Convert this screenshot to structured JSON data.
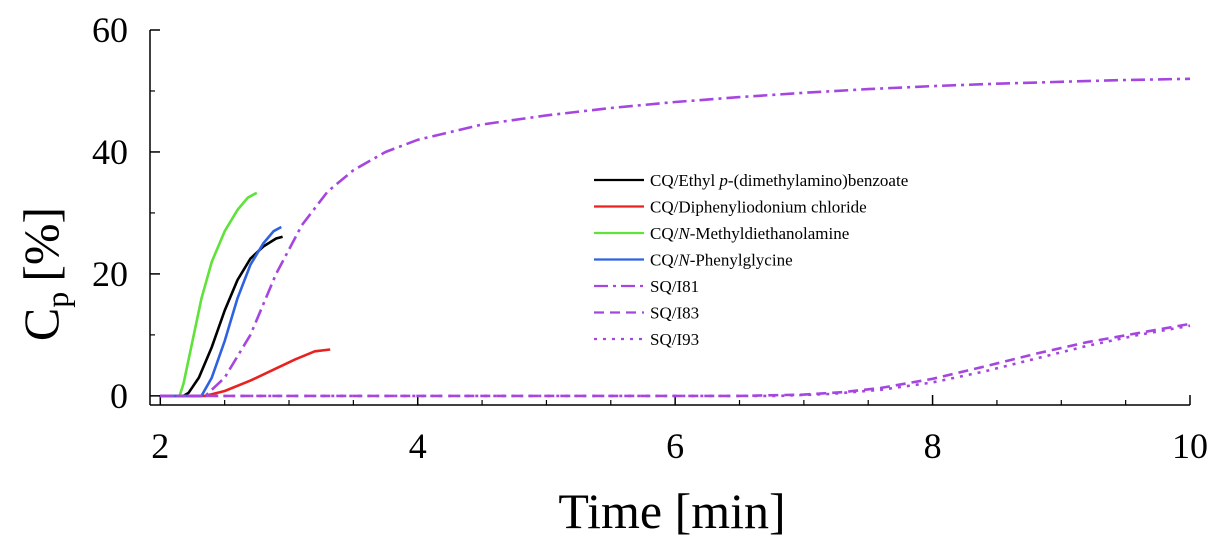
{
  "chart_data": {
    "type": "line",
    "xlabel": "Time [min]",
    "ylabel_main": "C",
    "ylabel_sub": "p",
    "ylabel_unit": "[%]",
    "xlim": [
      1.92,
      10.0
    ],
    "ylim": [
      -1.5,
      60
    ],
    "x_ticks": [
      2,
      4,
      6,
      8,
      10
    ],
    "x_tick_labels": [
      "2",
      "4",
      "6",
      "8",
      "10"
    ],
    "y_ticks": [
      0,
      20,
      40,
      60
    ],
    "y_tick_labels": [
      "0",
      "20",
      "40",
      "60"
    ],
    "x_minor_step": 0.5,
    "y_minor_step": 10,
    "grid": false,
    "legend_position": "center-right",
    "series": [
      {
        "name": "CQ/Ethyl p-(dimethylamino)benzoate",
        "name_parts": [
          {
            "text": "CQ/Ethyl ",
            "italic": false
          },
          {
            "text": "p",
            "italic": true
          },
          {
            "text": "-(dimethylamino)benzoate",
            "italic": false
          }
        ],
        "color": "#000000",
        "dash": "solid",
        "points": [
          [
            2.0,
            0
          ],
          [
            2.18,
            0
          ],
          [
            2.22,
            0.5
          ],
          [
            2.3,
            3
          ],
          [
            2.4,
            8
          ],
          [
            2.5,
            14
          ],
          [
            2.6,
            19
          ],
          [
            2.7,
            22.5
          ],
          [
            2.8,
            24.5
          ],
          [
            2.9,
            25.8
          ],
          [
            2.95,
            26.1
          ]
        ]
      },
      {
        "name": "CQ/Diphenyliodonium chloride",
        "name_parts": [
          {
            "text": "CQ/Diphenyliodonium chloride",
            "italic": false
          }
        ],
        "color": "#e8231f",
        "dash": "solid",
        "points": [
          [
            2.0,
            0
          ],
          [
            2.35,
            0
          ],
          [
            2.5,
            0.8
          ],
          [
            2.7,
            2.5
          ],
          [
            2.9,
            4.5
          ],
          [
            3.05,
            6.0
          ],
          [
            3.2,
            7.3
          ],
          [
            3.32,
            7.6
          ]
        ]
      },
      {
        "name": "CQ/N-Methyldiethanolamine",
        "name_parts": [
          {
            "text": "CQ/",
            "italic": false
          },
          {
            "text": "N",
            "italic": true
          },
          {
            "text": "-Methyldiethanolamine",
            "italic": false
          }
        ],
        "color": "#5fe23a",
        "dash": "solid",
        "points": [
          [
            2.0,
            0
          ],
          [
            2.15,
            0
          ],
          [
            2.18,
            2
          ],
          [
            2.25,
            9
          ],
          [
            2.32,
            16
          ],
          [
            2.4,
            22
          ],
          [
            2.5,
            27
          ],
          [
            2.6,
            30.5
          ],
          [
            2.68,
            32.5
          ],
          [
            2.75,
            33.3
          ]
        ]
      },
      {
        "name": "CQ/N-Phenylglycine",
        "name_parts": [
          {
            "text": "CQ/",
            "italic": false
          },
          {
            "text": "N",
            "italic": true
          },
          {
            "text": "-Phenylglycine",
            "italic": false
          }
        ],
        "color": "#2f62e0",
        "dash": "solid",
        "points": [
          [
            2.0,
            0
          ],
          [
            2.32,
            0
          ],
          [
            2.4,
            3
          ],
          [
            2.5,
            9
          ],
          [
            2.6,
            16
          ],
          [
            2.7,
            21.5
          ],
          [
            2.8,
            25
          ],
          [
            2.88,
            27
          ],
          [
            2.94,
            27.7
          ]
        ]
      },
      {
        "name": "SQ/I81",
        "name_parts": [
          {
            "text": "SQ/I81",
            "italic": false
          }
        ],
        "color": "#a646e0",
        "dash": "dashdot",
        "points": [
          [
            2.0,
            0
          ],
          [
            2.35,
            0
          ],
          [
            2.5,
            3
          ],
          [
            2.7,
            10
          ],
          [
            2.9,
            20
          ],
          [
            3.1,
            28
          ],
          [
            3.3,
            33.5
          ],
          [
            3.5,
            37
          ],
          [
            3.75,
            40
          ],
          [
            4.0,
            42
          ],
          [
            4.5,
            44.5
          ],
          [
            5.0,
            46
          ],
          [
            5.5,
            47.2
          ],
          [
            6.0,
            48.2
          ],
          [
            6.5,
            49
          ],
          [
            7.0,
            49.7
          ],
          [
            7.5,
            50.3
          ],
          [
            8.0,
            50.8
          ],
          [
            8.5,
            51.2
          ],
          [
            9.0,
            51.5
          ],
          [
            9.5,
            51.8
          ],
          [
            10.0,
            52.0
          ]
        ]
      },
      {
        "name": "SQ/I83",
        "name_parts": [
          {
            "text": "SQ/I83",
            "italic": false
          }
        ],
        "color": "#a646e0",
        "dash": "dashed",
        "points": [
          [
            2.0,
            0
          ],
          [
            6.5,
            0
          ],
          [
            7.0,
            0.2
          ],
          [
            7.3,
            0.6
          ],
          [
            7.6,
            1.3
          ],
          [
            8.0,
            2.8
          ],
          [
            8.4,
            4.8
          ],
          [
            8.8,
            6.9
          ],
          [
            9.2,
            8.8
          ],
          [
            9.6,
            10.3
          ],
          [
            10.0,
            11.8
          ]
        ]
      },
      {
        "name": "SQ/I93",
        "name_parts": [
          {
            "text": "SQ/I93",
            "italic": false
          }
        ],
        "color": "#a646e0",
        "dash": "dotted",
        "points": [
          [
            2.0,
            0
          ],
          [
            6.8,
            0
          ],
          [
            7.2,
            0.3
          ],
          [
            7.6,
            1.0
          ],
          [
            8.0,
            2.2
          ],
          [
            8.4,
            4.0
          ],
          [
            8.8,
            6.1
          ],
          [
            9.2,
            8.2
          ],
          [
            9.6,
            10.0
          ],
          [
            10.0,
            11.5
          ]
        ]
      }
    ]
  }
}
